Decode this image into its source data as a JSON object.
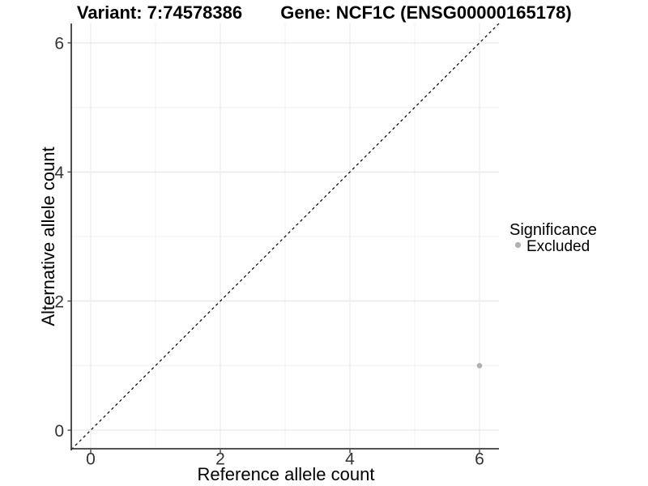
{
  "chart_data": {
    "type": "scatter",
    "title_left": "Variant: 7:74578386",
    "title_right": "Gene: NCF1C (ENSG00000165178)",
    "xlabel": "Reference allele count",
    "ylabel": "Alternative allele count",
    "xlim": [
      -0.3,
      6.3
    ],
    "ylim": [
      -0.3,
      6.3
    ],
    "x_major_ticks": [
      0,
      2,
      4,
      6
    ],
    "x_minor_ticks": [
      1,
      3,
      5
    ],
    "y_major_ticks": [
      0,
      2,
      4,
      6
    ],
    "y_minor_ticks": [
      1,
      3,
      5
    ],
    "grid": "major+minor",
    "legend_position": "right",
    "legend_title": "Significance",
    "series": [
      {
        "name": "Excluded",
        "color": "#b0b0b0",
        "points": [
          [
            6,
            1
          ]
        ]
      }
    ],
    "reference_line": {
      "slope": 1,
      "intercept": 0,
      "style": "dashed",
      "color": "#000000"
    }
  },
  "colors": {
    "background": "#ffffff",
    "grid_major": "#e6e6e6",
    "grid_minor": "#f2f2f2",
    "axis_line": "#3c3c3c",
    "tick_mark": "#3c3c3c",
    "tick_label": "#333333",
    "title_text": "#000000",
    "legend_text": "#000000"
  }
}
